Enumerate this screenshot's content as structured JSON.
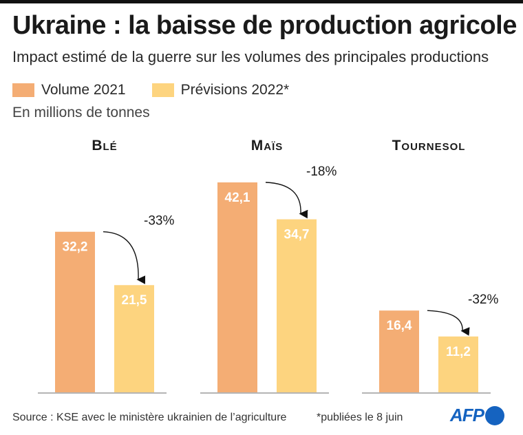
{
  "header": {
    "title": "Ukraine : la baisse de production agricole",
    "subtitle": "Impact estimé de la guerre sur les volumes des principales productions"
  },
  "legend": {
    "item_2021": "Volume 2021",
    "item_2022": "Prévisions 2022*"
  },
  "unit": "En millions de tonnes",
  "footer": {
    "source": "Source : KSE avec le ministère ukrainien de l’agriculture",
    "note": "*publiées le 8 juin",
    "logo": "AFP"
  },
  "colors": {
    "volume_2021": "#f4ad74",
    "previsions_2022": "#fdd47f",
    "value_label": "#ffffff",
    "axis": "#888888",
    "arrow": "#111111"
  },
  "chart_data": {
    "type": "bar",
    "categories": [
      "Blé",
      "Maïs",
      "Tournesol"
    ],
    "series": [
      {
        "name": "Volume 2021",
        "values": [
          32.2,
          42.1,
          16.4
        ]
      },
      {
        "name": "Prévisions 2022*",
        "values": [
          21.5,
          34.7,
          11.2
        ]
      }
    ],
    "value_labels": [
      [
        "32,2",
        "21,5"
      ],
      [
        "42,1",
        "34,7"
      ],
      [
        "16,4",
        "11,2"
      ]
    ],
    "annotations": [
      "-33%",
      "-18%",
      "-32%"
    ],
    "ylim": [
      0,
      42.1
    ],
    "grid": false,
    "legend_position": "top-left"
  }
}
